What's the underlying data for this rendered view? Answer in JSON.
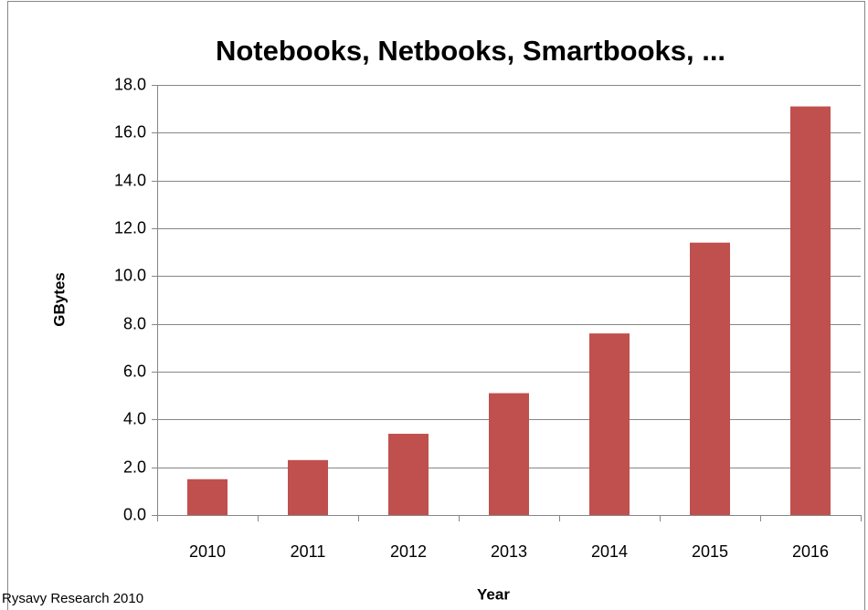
{
  "chart_data": {
    "type": "bar",
    "title": "Notebooks, Netbooks, Smartbooks, ...",
    "x_label": "Year",
    "y_label": "GBytes",
    "footnote": "Rysavy Research 2010",
    "categories": [
      "2010",
      "2011",
      "2012",
      "2013",
      "2014",
      "2015",
      "2016"
    ],
    "values": [
      1.5,
      2.3,
      3.4,
      5.1,
      7.6,
      11.4,
      17.1
    ],
    "color": "#c0504d",
    "ylim": [
      0,
      18
    ],
    "yticks": [
      {
        "value": 0,
        "label": "0.0"
      },
      {
        "value": 2,
        "label": "2.0"
      },
      {
        "value": 4,
        "label": "4.0"
      },
      {
        "value": 6,
        "label": "6.0"
      },
      {
        "value": 8,
        "label": "8.0"
      },
      {
        "value": 10,
        "label": "10.0"
      },
      {
        "value": 12,
        "label": "12.0"
      },
      {
        "value": 14,
        "label": "14.0"
      },
      {
        "value": 16,
        "label": "16.0"
      },
      {
        "value": 18,
        "label": "18.0"
      }
    ],
    "grid": true
  }
}
